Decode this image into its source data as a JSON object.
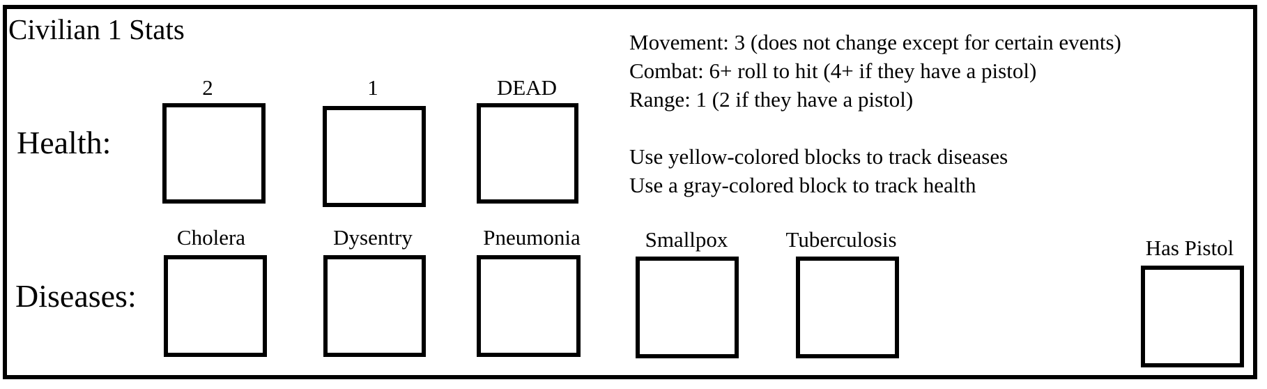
{
  "title": "Civilian 1 Stats",
  "health": {
    "label": "Health:",
    "boxes": [
      "2",
      "1",
      "DEAD"
    ]
  },
  "diseases": {
    "label": "Diseases:",
    "boxes": [
      "Cholera",
      "Dysentry",
      "Pneumonia",
      "Smallpox",
      "Tuberculosis"
    ]
  },
  "pistol": {
    "label": "Has Pistol"
  },
  "rules": {
    "movement": "Movement: 3 (does not change except for certain events)",
    "combat": "Combat: 6+ roll to hit (4+ if they have a pistol)",
    "range": "Range: 1 (2 if they have a pistol)",
    "disease_tracking": "Use yellow-colored blocks to track diseases",
    "health_tracking": "Use a gray-colored block to track health"
  }
}
